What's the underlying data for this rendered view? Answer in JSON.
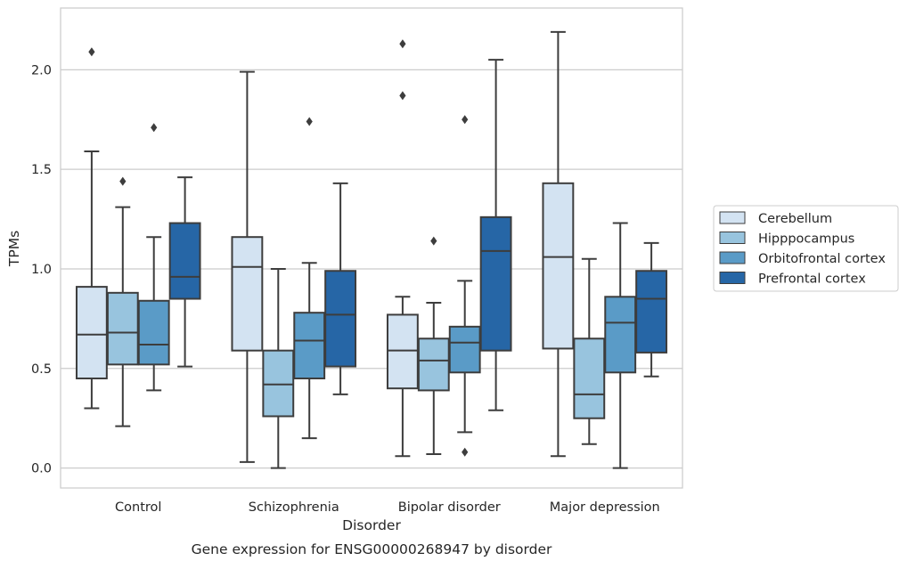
{
  "chart_data": {
    "type": "boxplot",
    "caption": "Gene expression for ENSG00000268947 by disorder",
    "xlabel": "Disorder",
    "ylabel": "TPMs",
    "ylim": [
      -0.1,
      2.31
    ],
    "yticks": [
      0.0,
      0.5,
      1.0,
      1.5,
      2.0
    ],
    "ytick_labels": [
      "0.0",
      "0.5",
      "1.0",
      "1.5",
      "2.0"
    ],
    "grid": "horizontal",
    "legend_position": "right",
    "categories": [
      "Control",
      "Schizophrenia",
      "Bipolar disorder",
      "Major depression"
    ],
    "series": [
      {
        "name": "Cerebellum",
        "color": "#d3e3f2",
        "boxes": [
          {
            "whislo": 0.3,
            "q1": 0.45,
            "med": 0.67,
            "q3": 0.91,
            "whishi": 1.59,
            "fliers": [
              2.09
            ]
          },
          {
            "whislo": 0.03,
            "q1": 0.59,
            "med": 1.01,
            "q3": 1.16,
            "whishi": 1.99,
            "fliers": []
          },
          {
            "whislo": 0.06,
            "q1": 0.4,
            "med": 0.59,
            "q3": 0.77,
            "whishi": 0.86,
            "fliers": [
              1.87,
              2.13
            ]
          },
          {
            "whislo": 0.06,
            "q1": 0.6,
            "med": 1.06,
            "q3": 1.43,
            "whishi": 2.19,
            "fliers": []
          }
        ]
      },
      {
        "name": "Hipppocampus",
        "color": "#98c4de",
        "boxes": [
          {
            "whislo": 0.21,
            "q1": 0.52,
            "med": 0.68,
            "q3": 0.88,
            "whishi": 1.31,
            "fliers": [
              1.44
            ]
          },
          {
            "whislo": 0.0,
            "q1": 0.26,
            "med": 0.42,
            "q3": 0.59,
            "whishi": 1.0,
            "fliers": []
          },
          {
            "whislo": 0.07,
            "q1": 0.39,
            "med": 0.54,
            "q3": 0.65,
            "whishi": 0.83,
            "fliers": [
              1.14
            ]
          },
          {
            "whislo": 0.12,
            "q1": 0.25,
            "med": 0.37,
            "q3": 0.65,
            "whishi": 1.05,
            "fliers": []
          }
        ]
      },
      {
        "name": "Orbitofrontal cortex",
        "color": "#5a9bc7",
        "boxes": [
          {
            "whislo": 0.39,
            "q1": 0.52,
            "med": 0.62,
            "q3": 0.84,
            "whishi": 1.16,
            "fliers": [
              1.71
            ]
          },
          {
            "whislo": 0.15,
            "q1": 0.45,
            "med": 0.64,
            "q3": 0.78,
            "whishi": 1.03,
            "fliers": [
              1.74
            ]
          },
          {
            "whislo": 0.18,
            "q1": 0.48,
            "med": 0.63,
            "q3": 0.71,
            "whishi": 0.94,
            "fliers": [
              0.08,
              1.75
            ]
          },
          {
            "whislo": 0.0,
            "q1": 0.48,
            "med": 0.73,
            "q3": 0.86,
            "whishi": 1.23,
            "fliers": []
          }
        ]
      },
      {
        "name": "Prefrontal cortex",
        "color": "#2666a6",
        "boxes": [
          {
            "whislo": 0.51,
            "q1": 0.85,
            "med": 0.96,
            "q3": 1.23,
            "whishi": 1.46,
            "fliers": []
          },
          {
            "whislo": 0.37,
            "q1": 0.51,
            "med": 0.77,
            "q3": 0.99,
            "whishi": 1.43,
            "fliers": []
          },
          {
            "whislo": 0.29,
            "q1": 0.59,
            "med": 1.09,
            "q3": 1.26,
            "whishi": 2.05,
            "fliers": []
          },
          {
            "whislo": 0.46,
            "q1": 0.58,
            "med": 0.85,
            "q3": 0.99,
            "whishi": 1.13,
            "fliers": []
          }
        ]
      }
    ]
  }
}
